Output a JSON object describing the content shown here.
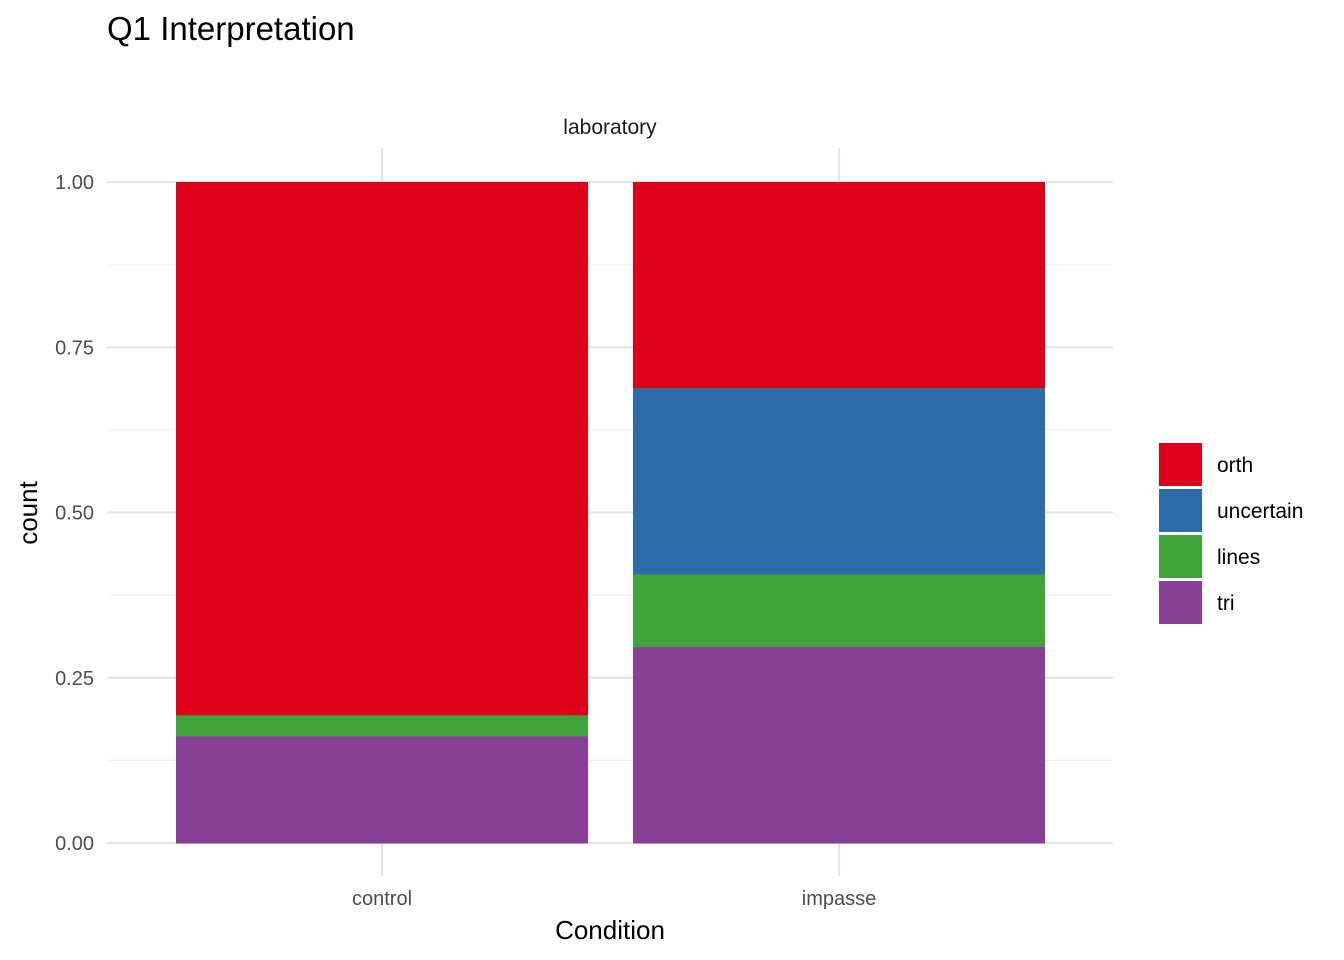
{
  "chart_data": {
    "type": "bar",
    "stacked": true,
    "title": "Q1 Interpretation",
    "facet": "laboratory",
    "xlabel": "Condition",
    "ylabel": "count",
    "categories": [
      "control",
      "impasse"
    ],
    "ylim": [
      0,
      1
    ],
    "yticks": [
      "0.00",
      "0.25",
      "0.50",
      "0.75",
      "1.00"
    ],
    "grid": true,
    "legend": {
      "placement": "right",
      "entries": [
        "orth",
        "uncertain",
        "lines",
        "tri"
      ]
    },
    "series": [
      {
        "name": "tri",
        "color": "#874093",
        "values": [
          0.162,
          0.297
        ]
      },
      {
        "name": "lines",
        "color": "#41a43a",
        "values": [
          0.032,
          0.11
        ]
      },
      {
        "name": "uncertain",
        "color": "#2e6ba9",
        "values": [
          0.0,
          0.282
        ]
      },
      {
        "name": "orth",
        "color": "#dc001a",
        "values": [
          0.806,
          0.311
        ]
      }
    ]
  }
}
